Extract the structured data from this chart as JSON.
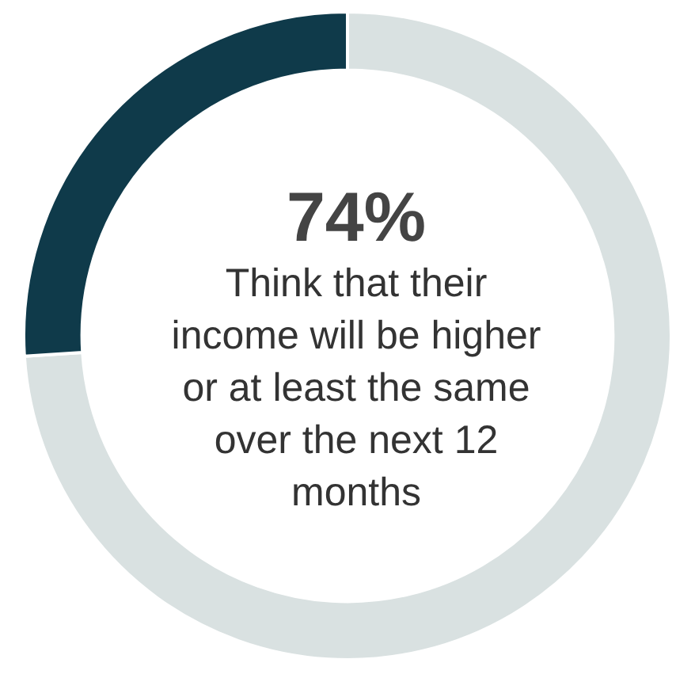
{
  "chart_data": {
    "type": "donut",
    "categories": [
      null,
      null
    ],
    "values": [
      74,
      26
    ],
    "colors": [
      "#d9e1e1",
      "#0f3a4a"
    ],
    "annotations": [
      "74%",
      "Think that their income will be higher or at least the same over the next 12 months"
    ],
    "legend": false
  }
}
